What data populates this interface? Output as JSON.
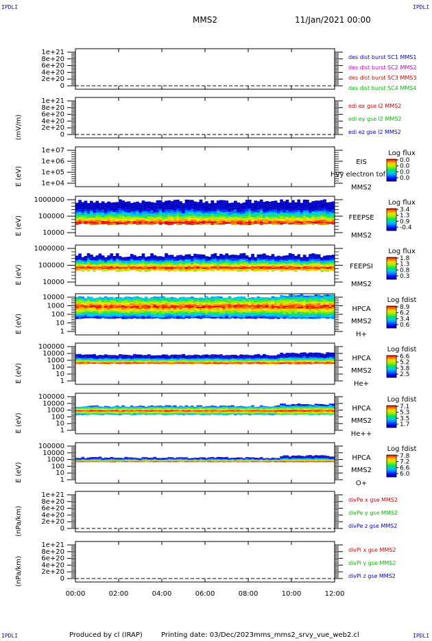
{
  "header": {
    "corner_label": "IPDLI",
    "spacecraft": "MMS2",
    "datetime": "11/Jan/2021 00:00"
  },
  "footer": {
    "produced_by": "Produced by cl (IRAP)",
    "printing_date": "Printing date: 03/Dec/2023",
    "script_name": "mms_mms2_srvy_vue_web2.cl"
  },
  "time_axis": {
    "ticks": [
      "00:00",
      "02:00",
      "04:00",
      "06:00",
      "08:00",
      "10:00",
      "12:00"
    ]
  },
  "panels": [
    {
      "id": "des-dist",
      "type": "line",
      "ylabel": "",
      "ytick_labels": [
        "1e+21",
        "8e+20",
        "6e+20",
        "4e+20",
        "2e+20",
        "0"
      ],
      "legend": [
        {
          "text": "des dist burst SC1 MMS1",
          "color": "#0000cc"
        },
        {
          "text": "des dist burst SC2 MMS2",
          "color": "#cc00cc"
        },
        {
          "text": "des dist burst SC3 MMS3",
          "color": "#dd0000"
        },
        {
          "text": "des dist burst SC4 MMS4",
          "color": "#00bb00"
        }
      ]
    },
    {
      "id": "edi",
      "type": "line",
      "ylabel": "(mV/m)",
      "ytick_labels": [
        "1e+21",
        "8e+20",
        "6e+20",
        "4e+20",
        "2e+20",
        "0"
      ],
      "legend": [
        {
          "text": "edi ex gse l2 MMS2",
          "color": "#dd0000"
        },
        {
          "text": "edi ey gse l2 MMS2",
          "color": "#00bb00"
        },
        {
          "text": "edi ez gse l2 MMS2",
          "color": "#0000cc"
        }
      ]
    },
    {
      "id": "eis",
      "type": "heatmap",
      "ylabel": "E (eV)",
      "ytick_labels": [
        "1e+07",
        "1e+06",
        "1e+05",
        "1e+04"
      ],
      "labels": [
        "EIS",
        "Hvy electron tof",
        "MMS2"
      ],
      "colorbar": {
        "title": "Log flux",
        "ticks": [
          "0.0",
          "0.0",
          "0.0",
          "0.0"
        ]
      }
    },
    {
      "id": "feepse",
      "type": "heatmap",
      "ylabel": "E (eV)",
      "ytick_labels": [
        "1000000",
        "100000",
        "10000"
      ],
      "labels": [
        "FEEPSE",
        "MMS2"
      ],
      "colorbar": {
        "title": "Log flux",
        "ticks": [
          "3.4",
          "1.3",
          "0.9",
          "-0.4"
        ]
      }
    },
    {
      "id": "feepsi",
      "type": "heatmap",
      "ylabel": "E (eV)",
      "ytick_labels": [
        "1000000",
        "100000",
        "10000"
      ],
      "labels": [
        "FEEPSI",
        "MMS2"
      ],
      "colorbar": {
        "title": "Log flux",
        "ticks": [
          "1.8",
          "1.3",
          "0.8",
          "0.3"
        ]
      }
    },
    {
      "id": "hpca-h",
      "type": "heatmap",
      "ylabel": "E (eV)",
      "ytick_labels": [
        "10000",
        "1000",
        "100",
        "10",
        "1"
      ],
      "labels": [
        "HPCA",
        "MMS2",
        "H+"
      ],
      "colorbar": {
        "title": "Log fdist",
        "ticks": [
          "8.9",
          "6.2",
          "3.4",
          "0.6"
        ]
      }
    },
    {
      "id": "hpca-he",
      "type": "heatmap",
      "ylabel": "E (eV)",
      "ytick_labels": [
        "100000",
        "10000",
        "1000",
        "100",
        "10",
        "1"
      ],
      "labels": [
        "HPCA",
        "MMS2",
        "He+"
      ],
      "colorbar": {
        "title": "Log fdist",
        "ticks": [
          "6.6",
          "5.2",
          "3.8",
          "2.5"
        ]
      }
    },
    {
      "id": "hpca-he2",
      "type": "heatmap",
      "ylabel": "E (eV)",
      "ytick_labels": [
        "100000",
        "10000",
        "1000",
        "100",
        "10",
        "1"
      ],
      "labels": [
        "HPCA",
        "MMS2",
        "He++"
      ],
      "colorbar": {
        "title": "Log fdist",
        "ticks": [
          "7.1",
          "5.3",
          "3.5",
          "1.7"
        ]
      }
    },
    {
      "id": "hpca-o",
      "type": "heatmap",
      "ylabel": "E (eV)",
      "ytick_labels": [
        "100000",
        "10000",
        "1000",
        "100",
        "10",
        "1"
      ],
      "labels": [
        "HPCA",
        "MMS2",
        "O+"
      ],
      "colorbar": {
        "title": "Log fdist",
        "ticks": [
          "7.8",
          "7.2",
          "6.6",
          "6.0"
        ]
      }
    },
    {
      "id": "divpe",
      "type": "line",
      "ylabel": "(nPa/km)",
      "ytick_labels": [
        "1e+21",
        "8e+20",
        "6e+20",
        "4e+20",
        "2e+20",
        "0"
      ],
      "legend": [
        {
          "text": "divPe x gse MMS2",
          "color": "#dd0000"
        },
        {
          "text": "divPe y gse MMS2",
          "color": "#00bb00"
        },
        {
          "text": "divPe z gse MMS2",
          "color": "#0000cc"
        }
      ]
    },
    {
      "id": "divpi",
      "type": "line",
      "ylabel": "(nPa/km)",
      "ytick_labels": [
        "1e+21",
        "8e+20",
        "6e+20",
        "4e+20",
        "2e+20",
        "0"
      ],
      "legend": [
        {
          "text": "divPi x gse MMS2",
          "color": "#dd0000"
        },
        {
          "text": "divPi y gse MMS2",
          "color": "#00bb00"
        },
        {
          "text": "divPi z gse MMS2",
          "color": "#0000cc"
        }
      ]
    }
  ],
  "chart_data": {
    "type": "heatmap",
    "title": "MMS2",
    "x_range": [
      "00:00",
      "12:00"
    ],
    "bands": [
      {
        "panel": "feepse",
        "log_e_low": 4.5,
        "log_e_high": 5.9,
        "peak_log_e": 4.6
      },
      {
        "panel": "feepsi",
        "log_e_low": 4.65,
        "log_e_high": 5.6,
        "peak_log_e": 4.85
      },
      {
        "panel": "hpca-h",
        "log_e_low": 1.5,
        "log_e_high": 4.0,
        "peak_log_e": 2.9
      },
      {
        "panel": "hpca-he",
        "log_e_low": 2.45,
        "log_e_high": 3.8,
        "peak_log_e": 2.6
      },
      {
        "panel": "hpca-he2",
        "log_e_low": 2.3,
        "log_e_high": 3.6,
        "peak_log_e": 2.9
      },
      {
        "panel": "hpca-o",
        "log_e_low": 2.6,
        "log_e_high": 3.3,
        "peak_log_e": 2.7
      }
    ],
    "dashed_zero_line": true
  }
}
